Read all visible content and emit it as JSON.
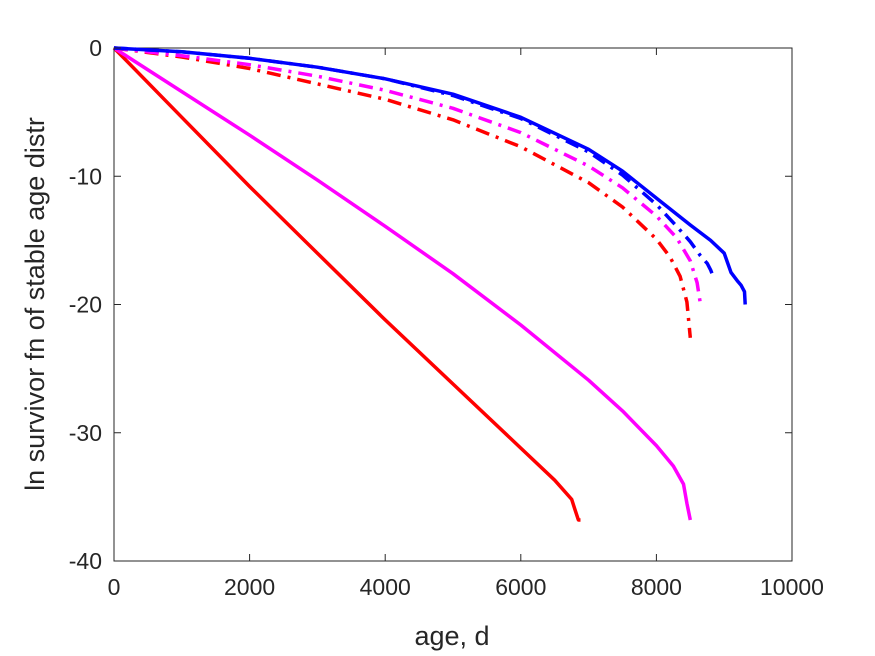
{
  "chart_data": {
    "type": "line",
    "title": "",
    "xlabel": "age, d",
    "ylabel": "ln survivor fn of stable age distr",
    "xlim": [
      0,
      10000
    ],
    "ylim": [
      -40,
      0
    ],
    "xticks": [
      0,
      2000,
      4000,
      6000,
      8000,
      10000
    ],
    "yticks": [
      0,
      -10,
      -20,
      -30,
      -40
    ],
    "xtick_labels": [
      "0",
      "2000",
      "4000",
      "6000",
      "8000",
      "10000"
    ],
    "ytick_labels": [
      "0",
      "-10",
      "-20",
      "-30",
      "-40"
    ],
    "grid": false,
    "legend": "none",
    "series": [
      {
        "color": "#ff0000",
        "style": "solid",
        "x": [
          0,
          1000,
          2000,
          3000,
          4000,
          5000,
          6000,
          6500,
          6750,
          6800,
          6850,
          6880
        ],
        "y": [
          0,
          -5.4,
          -10.8,
          -16.0,
          -21.2,
          -26.2,
          -31.2,
          -33.7,
          -35.2,
          -36.0,
          -36.8,
          -36.8
        ]
      },
      {
        "color": "#ff00ff",
        "style": "solid",
        "x": [
          0,
          1000,
          2000,
          3000,
          4000,
          5000,
          6000,
          7000,
          7500,
          8000,
          8250,
          8400,
          8450,
          8500
        ],
        "y": [
          0,
          -3.4,
          -6.8,
          -10.3,
          -13.9,
          -17.6,
          -21.6,
          -25.9,
          -28.3,
          -31.0,
          -32.6,
          -34.0,
          -35.5,
          -36.8
        ]
      },
      {
        "color": "#ff0000",
        "style": "dashdot",
        "x": [
          0,
          1000,
          2000,
          3000,
          4000,
          5000,
          6000,
          7000,
          7500,
          8000,
          8200,
          8350,
          8450,
          8500
        ],
        "y": [
          0,
          -0.7,
          -1.6,
          -2.8,
          -4.0,
          -5.6,
          -7.7,
          -10.5,
          -12.4,
          -14.9,
          -16.3,
          -17.8,
          -19.8,
          -22.6
        ]
      },
      {
        "color": "#ff00ff",
        "style": "dashdot",
        "x": [
          0,
          1000,
          2000,
          3000,
          4000,
          5000,
          6000,
          7000,
          7500,
          8000,
          8300,
          8500,
          8600,
          8650
        ],
        "y": [
          0,
          -0.6,
          -1.3,
          -2.2,
          -3.3,
          -4.7,
          -6.6,
          -9.2,
          -10.9,
          -13.1,
          -14.8,
          -16.6,
          -18.3,
          -20.0
        ]
      },
      {
        "color": "#0000ff",
        "style": "dashdot",
        "x": [
          0,
          1000,
          2000,
          3000,
          4000,
          5000,
          6000,
          7000,
          7500,
          8000,
          8300,
          8500,
          8650,
          8750,
          8800,
          8850
        ],
        "y": [
          0,
          -0.3,
          -0.8,
          -1.5,
          -2.4,
          -3.7,
          -5.5,
          -8.1,
          -9.9,
          -12.2,
          -13.9,
          -15.1,
          -16.2,
          -16.8,
          -17.3,
          -18.0
        ]
      },
      {
        "color": "#0000ff",
        "style": "solid",
        "x": [
          0,
          1000,
          2000,
          3000,
          4000,
          5000,
          6000,
          7000,
          7500,
          8000,
          8500,
          8800,
          9000,
          9100,
          9200,
          9250,
          9300,
          9310
        ],
        "y": [
          0,
          -0.3,
          -0.8,
          -1.5,
          -2.4,
          -3.6,
          -5.4,
          -7.9,
          -9.6,
          -11.7,
          -13.8,
          -15.0,
          -16.0,
          -17.5,
          -18.2,
          -18.5,
          -19.0,
          -20.0
        ]
      }
    ]
  }
}
